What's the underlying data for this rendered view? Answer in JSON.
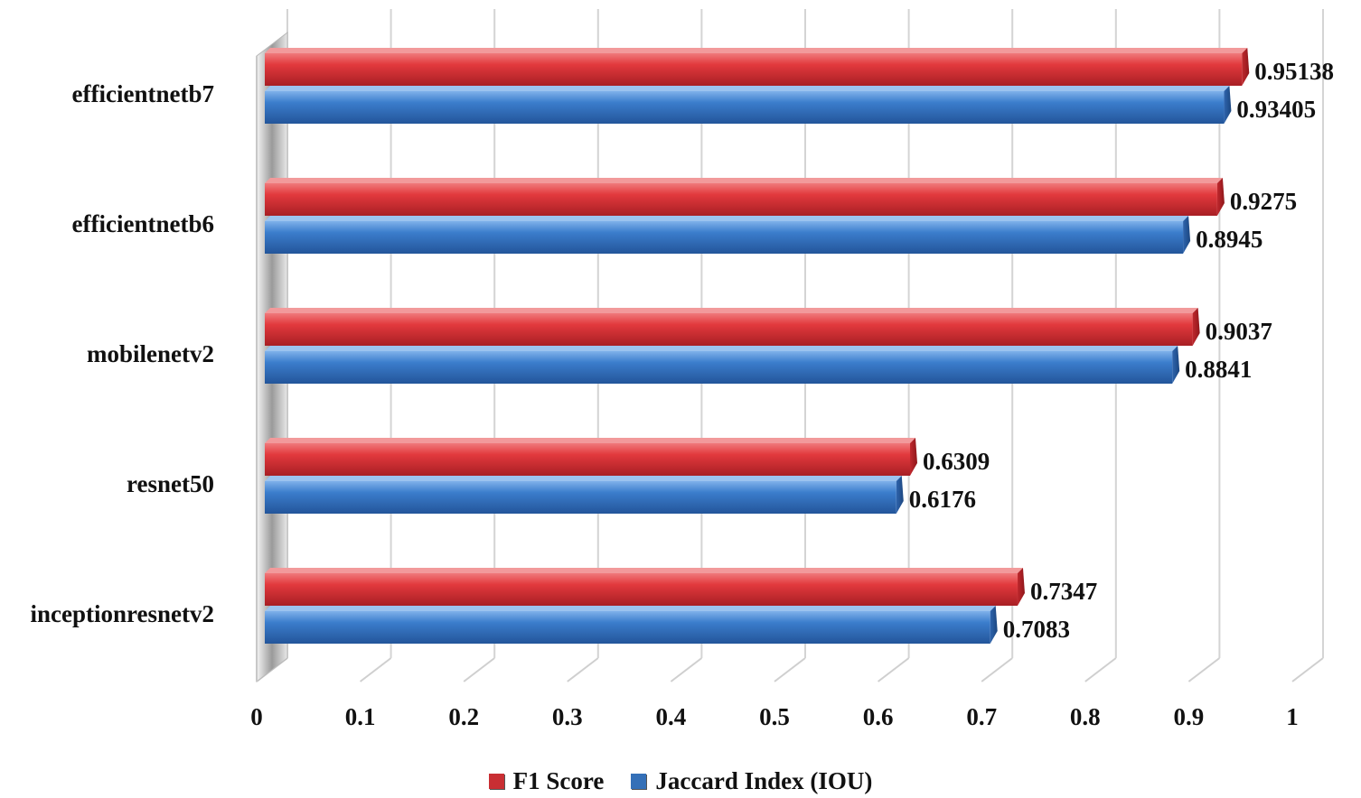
{
  "chart_data": {
    "type": "bar",
    "orientation": "horizontal",
    "categories": [
      "efficientnetb7",
      "efficientnetb6",
      "mobilenetv2",
      "resnet50",
      "inceptionresnetv2"
    ],
    "series": [
      {
        "name": "F1 Score",
        "color": "#d93a3e",
        "values": [
          0.95138,
          0.9275,
          0.9037,
          0.6309,
          0.7347
        ],
        "labels": [
          "0.95138",
          "0.9275",
          "0.9037",
          "0.6309",
          "0.7347"
        ]
      },
      {
        "name": "Jaccard Index (IOU)",
        "color": "#3a78c6",
        "values": [
          0.93405,
          0.8945,
          0.8841,
          0.6176,
          0.7083
        ],
        "labels": [
          "0.93405",
          "0.8945",
          "0.8841",
          "0.6176",
          "0.7083"
        ]
      }
    ],
    "xlim": [
      0,
      1
    ],
    "xticks": [
      "0",
      "0.1",
      "0.2",
      "0.3",
      "0.4",
      "0.5",
      "0.6",
      "0.7",
      "0.8",
      "0.9",
      "1"
    ],
    "grid": true,
    "legend_position": "bottom"
  }
}
